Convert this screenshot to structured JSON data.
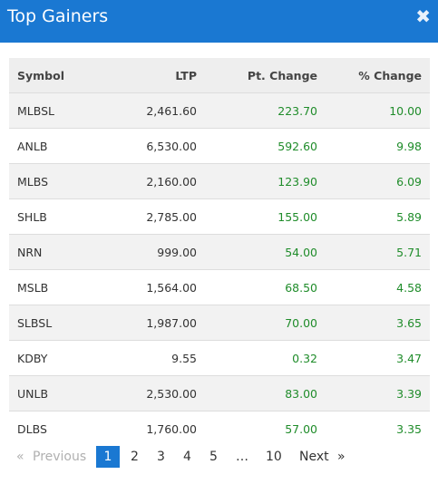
{
  "header": {
    "title": "Top Gainers",
    "close_glyph": "✖"
  },
  "table": {
    "columns": [
      "Symbol",
      "LTP",
      "Pt. Change",
      "% Change"
    ],
    "rows": [
      [
        "MLBSL",
        "2,461.60",
        "223.70",
        "10.00"
      ],
      [
        "ANLB",
        "6,530.00",
        "592.60",
        "9.98"
      ],
      [
        "MLBS",
        "2,160.00",
        "123.90",
        "6.09"
      ],
      [
        "SHLB",
        "2,785.00",
        "155.00",
        "5.89"
      ],
      [
        "NRN",
        "999.00",
        "54.00",
        "5.71"
      ],
      [
        "MSLB",
        "1,564.00",
        "68.50",
        "4.58"
      ],
      [
        "SLBSL",
        "1,987.00",
        "70.00",
        "3.65"
      ],
      [
        "KDBY",
        "9.55",
        "0.32",
        "3.47"
      ],
      [
        "UNLB",
        "2,530.00",
        "83.00",
        "3.39"
      ],
      [
        "DLBS",
        "1,760.00",
        "57.00",
        "3.35"
      ]
    ]
  },
  "pagination": {
    "prev_arrow": "«",
    "prev_label": "Previous",
    "pages": [
      "1",
      "2",
      "3",
      "4",
      "5",
      "…",
      "10"
    ],
    "next_label": "Next",
    "next_arrow": "»"
  },
  "colors": {
    "accent": "#1a78d2",
    "positive": "#1f8c2a"
  }
}
